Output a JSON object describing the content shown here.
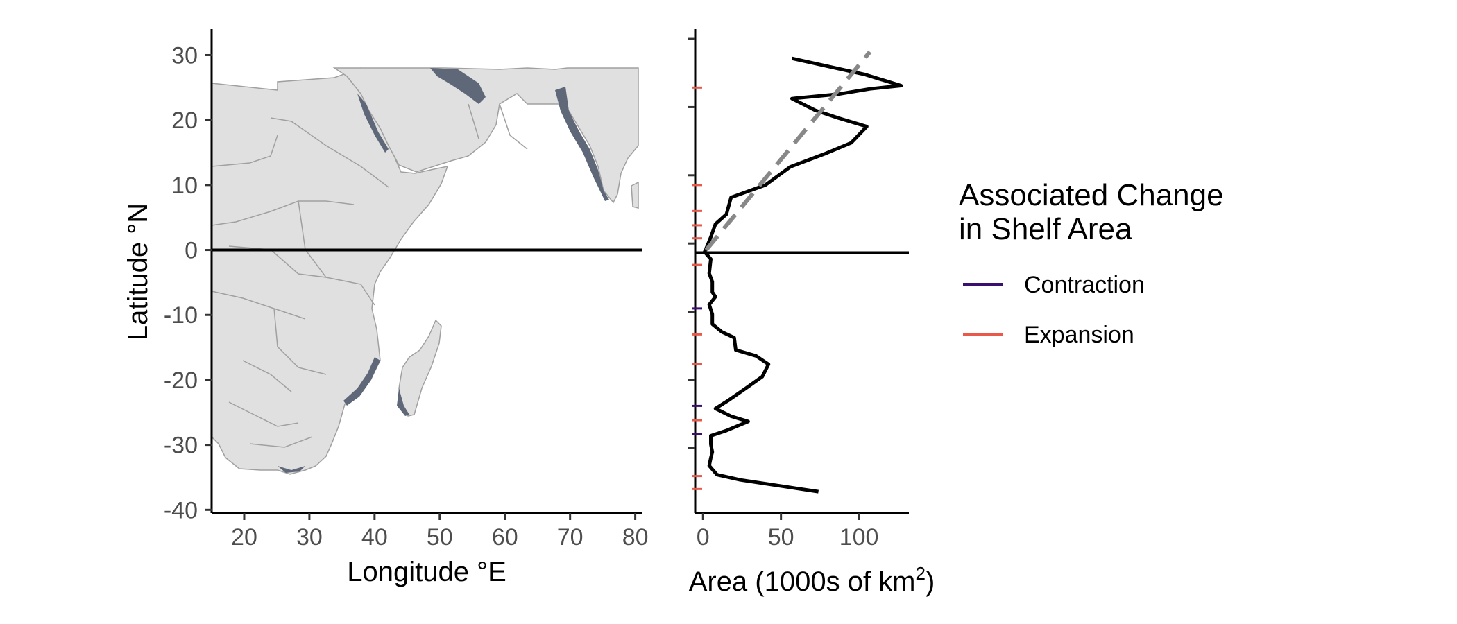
{
  "chart_data": [
    {
      "type": "map",
      "xlabel": "Longitude °E",
      "ylabel": "Latitude °N",
      "xlim": [
        15,
        81
      ],
      "ylim": [
        -40.5,
        34
      ],
      "x_ticks": [
        20,
        30,
        40,
        50,
        60,
        70,
        80
      ],
      "y_ticks": [
        30,
        20,
        10,
        0,
        -10,
        -20,
        -30,
        -40
      ],
      "equator_line": 0,
      "colors": {
        "land": "#e0e0e0",
        "borders": "#a0a0a0",
        "shelf": "#5e6878",
        "equator": "#000000"
      }
    },
    {
      "type": "line",
      "xlabel": "Area (1000s of km",
      "xlabel_superscript": "2",
      "xlabel_suffix": ")",
      "xlim": [
        -5,
        132
      ],
      "ylim": [
        -40.5,
        34
      ],
      "x_ticks": [
        0,
        50,
        100
      ],
      "equator_line": 0,
      "series": [
        {
          "color": "#000000",
          "points": [
            [
              57,
              29.5
            ],
            [
              104,
              27
            ],
            [
              127,
              25.3
            ],
            [
              107,
              24.8
            ],
            [
              87,
              24
            ],
            [
              57,
              23.3
            ],
            [
              72,
              21.5
            ],
            [
              87,
              20.3
            ],
            [
              105,
              19
            ],
            [
              95,
              16.5
            ],
            [
              78,
              14.8
            ],
            [
              56,
              12.8
            ],
            [
              40,
              10
            ],
            [
              18,
              8.1
            ],
            [
              15,
              5.5
            ],
            [
              8,
              4
            ],
            [
              5,
              2
            ],
            [
              3,
              0.8
            ],
            [
              1,
              -0.3
            ],
            [
              5,
              -1.4
            ],
            [
              4,
              -3.6
            ],
            [
              6,
              -4.9
            ],
            [
              6,
              -6.5
            ],
            [
              8,
              -7.2
            ],
            [
              4,
              -8.4
            ],
            [
              6,
              -9.9
            ],
            [
              6,
              -11.4
            ],
            [
              12,
              -12.6
            ],
            [
              20,
              -13.5
            ],
            [
              21,
              -15.4
            ],
            [
              34,
              -16.3
            ],
            [
              42,
              -17.6
            ],
            [
              38,
              -19.5
            ],
            [
              28,
              -21.2
            ],
            [
              16,
              -23.2
            ],
            [
              8,
              -24.4
            ],
            [
              18,
              -25.6
            ],
            [
              29,
              -26.4
            ],
            [
              15,
              -27.8
            ],
            [
              5,
              -28.6
            ],
            [
              5,
              -29.9
            ],
            [
              6,
              -31.1
            ],
            [
              5,
              -32
            ],
            [
              4,
              -33.2
            ],
            [
              9,
              -34.6
            ],
            [
              24,
              -35.4
            ],
            [
              74,
              -37.2
            ]
          ]
        },
        {
          "color": "#888888",
          "dash": "dashed",
          "points": [
            [
              2,
              0
            ],
            [
              107,
              30.5
            ]
          ]
        }
      ],
      "change_markers": [
        {
          "y": 25,
          "type": "Expansion"
        },
        {
          "y": 10,
          "type": "Expansion"
        },
        {
          "y": 6,
          "type": "Expansion"
        },
        {
          "y": 3.8,
          "type": "Expansion"
        },
        {
          "y": 1.8,
          "type": "Expansion"
        },
        {
          "y": -2.3,
          "type": "Expansion"
        },
        {
          "y": -9,
          "type": "Contraction"
        },
        {
          "y": -13,
          "type": "Expansion"
        },
        {
          "y": -17.5,
          "type": "Expansion"
        },
        {
          "y": -24,
          "type": "Contraction"
        },
        {
          "y": -26.2,
          "type": "Expansion"
        },
        {
          "y": -28.3,
          "type": "Contraction"
        },
        {
          "y": -34.8,
          "type": "Expansion"
        },
        {
          "y": -36.8,
          "type": "Expansion"
        }
      ],
      "y_ticks_unlabeled": [
        32.5,
        22,
        11.5,
        1,
        -9.5,
        -20,
        -30.5
      ]
    }
  ],
  "legend": {
    "title_line1": "Associated Change",
    "title_line2": "in Shelf Area",
    "items": [
      {
        "label": "Contraction",
        "color": "#3b0f70"
      },
      {
        "label": "Expansion",
        "color": "#e8594a"
      }
    ]
  }
}
